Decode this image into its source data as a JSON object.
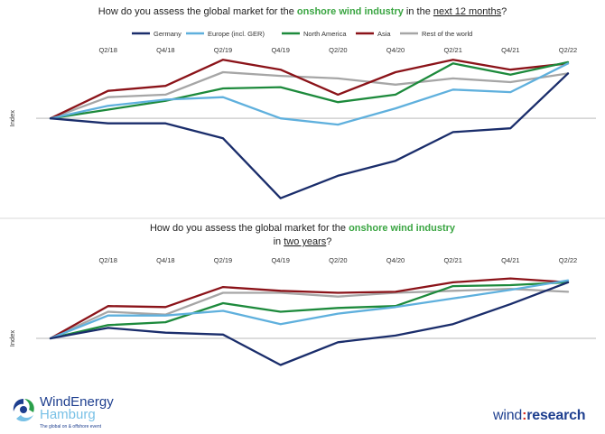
{
  "legend": [
    {
      "name": "Germany",
      "color": "#1a2d6b"
    },
    {
      "name": "Europe (incl. GER)",
      "color": "#5fb0dd"
    },
    {
      "name": "North America",
      "color": "#1d8a3c"
    },
    {
      "name": "Asia",
      "color": "#8b1319"
    },
    {
      "name": "Rest of the world",
      "color": "#a6a6a6"
    }
  ],
  "chart_data": [
    {
      "type": "line",
      "title_parts": [
        {
          "text": "How do you assess the global market for the ",
          "style": "plain"
        },
        {
          "text": "onshore wind industry",
          "style": "green"
        },
        {
          "text": " in the ",
          "style": "plain"
        },
        {
          "text": "next 12 months",
          "style": "underline"
        },
        {
          "text": "?",
          "style": "plain"
        }
      ],
      "ylabel": "Index",
      "x": [
        "Q4/17",
        "Q2/18",
        "Q4/18",
        "Q2/19",
        "Q4/19",
        "Q2/20",
        "Q4/20",
        "Q2/21",
        "Q4/21",
        "Q2/22"
      ],
      "ylim": [
        -70,
        50
      ],
      "zero_line": 0,
      "series": [
        {
          "name": "Germany",
          "values": [
            0,
            -4,
            -4,
            -16,
            -64,
            -46,
            -34,
            -11,
            -8,
            36
          ]
        },
        {
          "name": "Europe (incl. GER)",
          "values": [
            0,
            10,
            15,
            17,
            0,
            -5,
            8,
            23,
            21,
            44
          ]
        },
        {
          "name": "North America",
          "values": [
            0,
            7,
            14,
            24,
            25,
            13,
            19,
            44,
            35,
            45
          ]
        },
        {
          "name": "Asia",
          "values": [
            0,
            22,
            26,
            47,
            39,
            19,
            37,
            47,
            39,
            44
          ]
        },
        {
          "name": "Rest of the world",
          "values": [
            0,
            17,
            19,
            37,
            34,
            32,
            27,
            32,
            29,
            36
          ]
        }
      ]
    },
    {
      "type": "line",
      "title_parts": [
        {
          "text": "How do you assess the global market for the ",
          "style": "plain"
        },
        {
          "text": "onshore wind industry",
          "style": "green"
        },
        {
          "text": "in ",
          "style": "plain",
          "newline": true
        },
        {
          "text": "two years",
          "style": "underline"
        },
        {
          "text": "?",
          "style": "plain"
        }
      ],
      "ylabel": "Index",
      "x": [
        "Q4/17",
        "Q2/18",
        "Q4/18",
        "Q2/19",
        "Q4/19",
        "Q2/20",
        "Q4/20",
        "Q2/21",
        "Q4/21",
        "Q2/22"
      ],
      "ylim": [
        -55,
        75
      ],
      "zero_line": 0,
      "series": [
        {
          "name": "Germany",
          "values": [
            0,
            11,
            6,
            4,
            -28,
            -4,
            3,
            15,
            36,
            59
          ]
        },
        {
          "name": "Europe (incl. GER)",
          "values": [
            0,
            24,
            24,
            29,
            15,
            26,
            33,
            42,
            51,
            61
          ]
        },
        {
          "name": "North America",
          "values": [
            0,
            14,
            17,
            37,
            28,
            32,
            34,
            55,
            56,
            59
          ]
        },
        {
          "name": "Asia",
          "values": [
            0,
            34,
            33,
            54,
            50,
            48,
            49,
            59,
            63,
            59
          ]
        },
        {
          "name": "Rest of the world",
          "values": [
            0,
            28,
            25,
            48,
            48,
            44,
            48,
            50,
            52,
            49
          ]
        }
      ]
    }
  ],
  "logos": {
    "left_line1": "WindEnergy",
    "left_line2": "Hamburg",
    "left_tagline": "The global on & offshore event",
    "right_part1": "wind",
    "right_part2": ":",
    "right_part3": "research"
  }
}
